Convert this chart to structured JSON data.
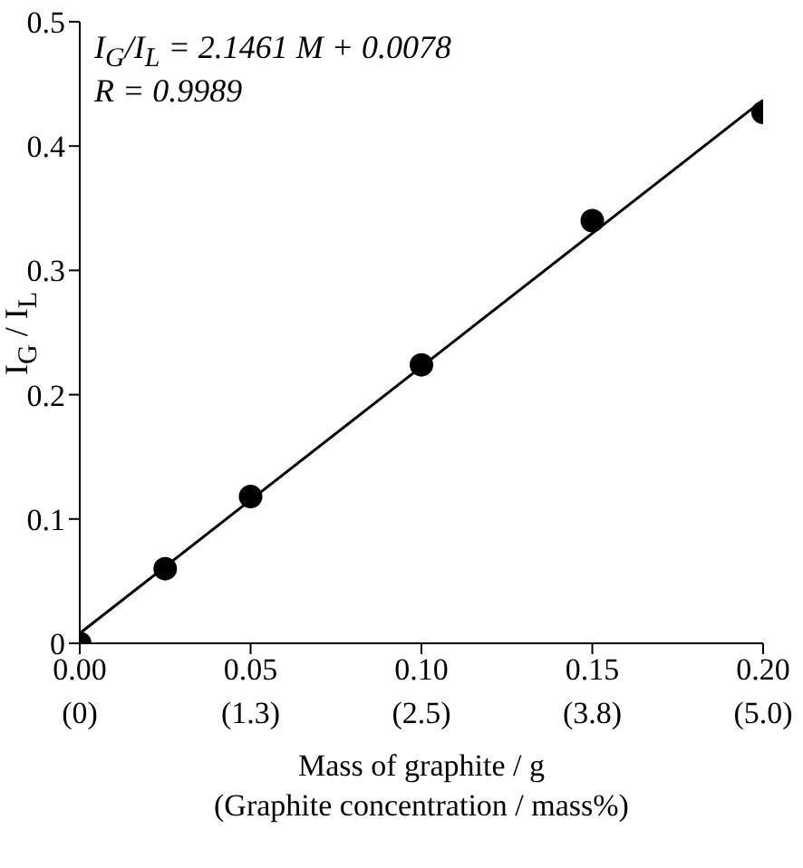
{
  "chart_data": {
    "type": "scatter",
    "xlabel": "Mass of graphite / g",
    "x2label": "(Graphite concentration / mass%)",
    "ylabel": "I$_{G}$ / I$_{L}$",
    "annotations": [
      "I$_{G}$/I$_{L}$ = 2.1461 M + 0.0078",
      "R = 0.9989"
    ],
    "series": [
      {
        "type": "scatter",
        "color": "#000000",
        "marker": "circle",
        "x": [
          0,
          0.025,
          0.05,
          0.1,
          0.15,
          0.2
        ],
        "values": [
          0,
          0.06,
          0.118,
          0.224,
          0.34,
          0.427
        ]
      },
      {
        "type": "line",
        "color": "#000000",
        "marker": "none",
        "x": [
          0,
          0.2
        ],
        "values": [
          0.008,
          0.437
        ]
      }
    ],
    "xlim": [
      0,
      0.2
    ],
    "xticks": [
      {
        "value": 0,
        "label": "0.00"
      },
      {
        "value": 0.05,
        "label": "0.05"
      },
      {
        "value": 0.1,
        "label": "0.10"
      },
      {
        "value": 0.15,
        "label": "0.15"
      },
      {
        "value": 0.2,
        "label": "0.20"
      }
    ],
    "x2lim": [
      0,
      5
    ],
    "x2ticks": [
      {
        "value": 0,
        "label": "(0)"
      },
      {
        "value": 1.25,
        "label": "(1.3)"
      },
      {
        "value": 2.5,
        "label": "(2.5)"
      },
      {
        "value": 3.75,
        "label": "(3.8)"
      },
      {
        "value": 5,
        "label": "(5.0)"
      }
    ],
    "ylim": [
      0,
      0.5
    ],
    "yticks": [
      0,
      0.1,
      0.2,
      0.3,
      0.4,
      0.5
    ],
    "grid": false,
    "legend": false
  }
}
